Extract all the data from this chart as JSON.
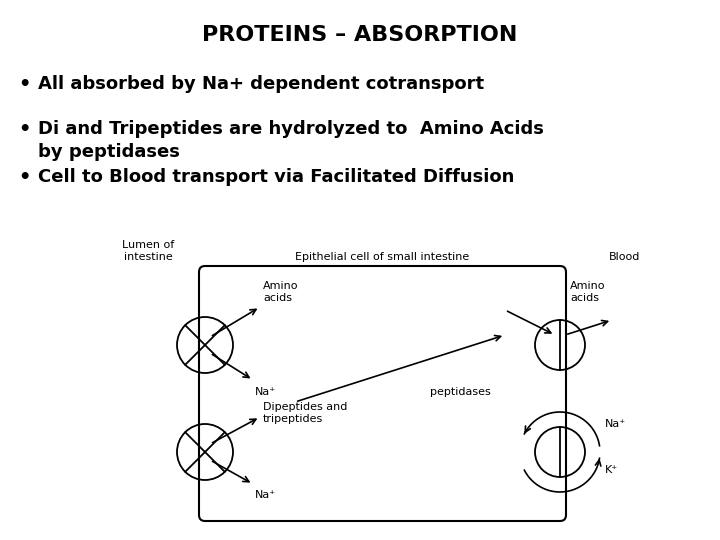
{
  "title": "PROTEINS – ABSORPTION",
  "bullet1": "All absorbed by Na+ dependent cotransport",
  "bullet2a": "Di and Tripeptides are hydrolyzed to  Amino Acids",
  "bullet2b": "by peptidases",
  "bullet3": "Cell to Blood transport via Facilitated Diffusion",
  "bg_color": "#ffffff",
  "text_color": "#000000",
  "title_fontsize": 16,
  "bullet_fontsize": 13,
  "diagram": {
    "label_lumen": "Lumen of\nintestine",
    "label_epithelial": "Epithelial cell of small intestine",
    "label_blood": "Blood",
    "label_amino_acids_left": "Amino\nacids",
    "label_na_top_left": "Na⁺",
    "label_dipeptides": "Dipeptides and\ntripeptides",
    "label_na_bottom_left": "Na⁺",
    "label_amino_acids_right": "Amino\nacids",
    "label_peptidases": "peptidases",
    "label_na_right": "Na⁺",
    "label_k_right": "K⁺"
  }
}
